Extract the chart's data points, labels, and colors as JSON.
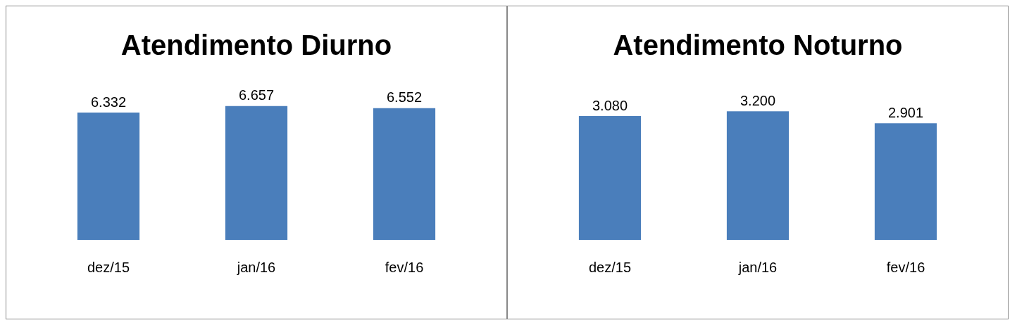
{
  "chart_data": [
    {
      "type": "bar",
      "title": "Atendimento Diurno",
      "categories": [
        "dez/15",
        "jan/16",
        "fev/16"
      ],
      "values": [
        6332,
        6657,
        6552
      ],
      "value_labels": [
        "6.332",
        "6.657",
        "6.552"
      ],
      "color": "#4a7ebb",
      "legend": false,
      "grid": false,
      "tick_labels": "x"
    },
    {
      "type": "bar",
      "title": "Atendimento Noturno",
      "categories": [
        "dez/15",
        "jan/16",
        "fev/16"
      ],
      "values": [
        3080,
        3200,
        2901
      ],
      "value_labels": [
        "3.080",
        "3.200",
        "2.901"
      ],
      "color": "#4a7ebb",
      "legend": false,
      "grid": false,
      "tick_labels": "x"
    }
  ]
}
